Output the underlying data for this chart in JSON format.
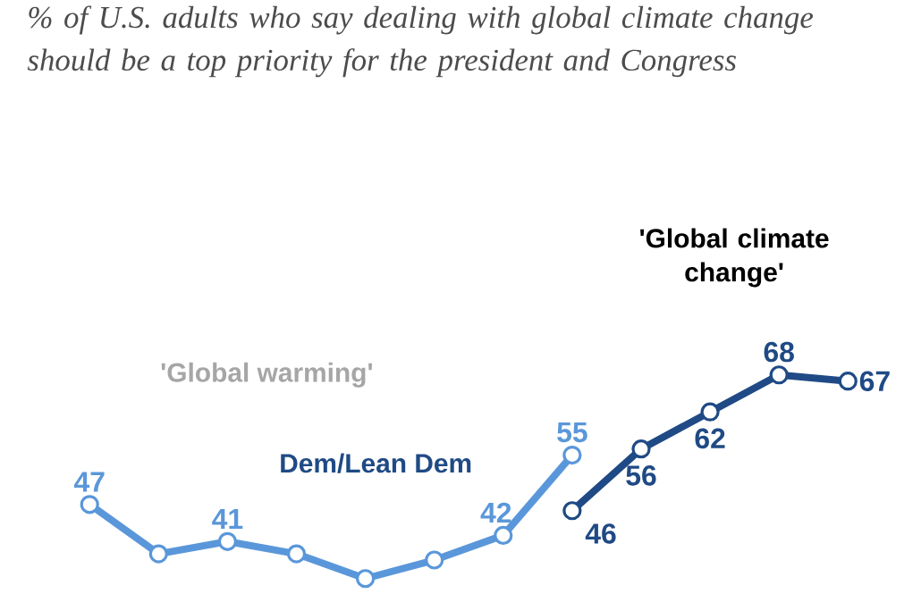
{
  "chart_data": {
    "type": "line",
    "subtitle": "% of U.S. adults who say dealing with global climate change should be a top priority for the president and Congress",
    "categories": [
      null,
      null,
      null,
      null,
      null,
      null,
      null,
      null,
      null,
      null,
      null,
      null
    ],
    "series": [
      {
        "color": "#5a97da",
        "values": [
          47,
          39,
          41,
          39,
          35,
          38,
          42,
          55,
          null,
          null,
          null,
          null
        ],
        "value_labels": [
          "47",
          null,
          "41",
          null,
          null,
          null,
          "42",
          "55",
          null,
          null,
          null,
          null
        ]
      },
      {
        "color": "#1f4a85",
        "values": [
          null,
          null,
          null,
          null,
          null,
          null,
          null,
          46,
          56,
          62,
          68,
          67
        ],
        "value_labels": [
          null,
          null,
          null,
          null,
          null,
          null,
          null,
          "46",
          "56",
          "62",
          "68",
          "67"
        ]
      }
    ],
    "annotations": [
      "'Global warming'",
      "Dem/Lean Dem",
      "'Global climate change'"
    ],
    "marker": "circle",
    "line_style": "solid"
  }
}
